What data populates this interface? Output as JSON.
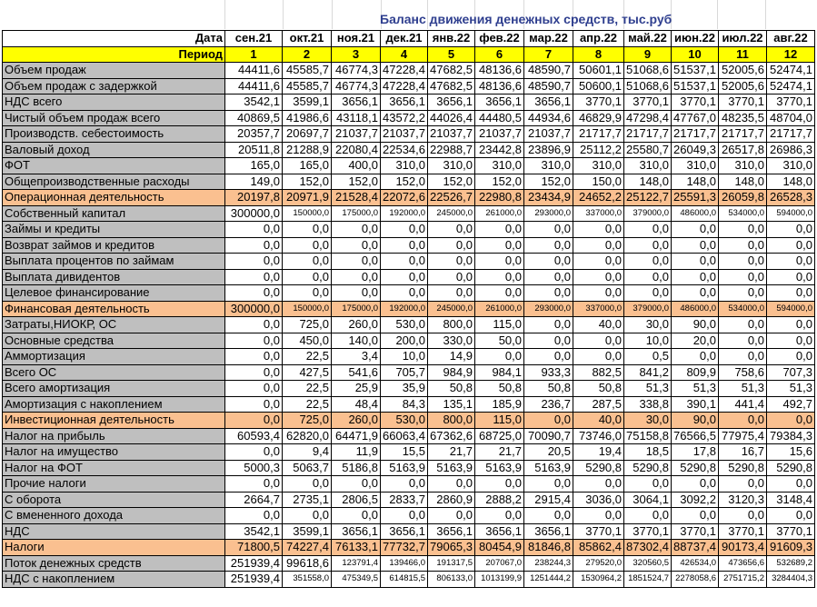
{
  "title": "Баланс движения денежных средств, тыс.руб",
  "header": {
    "label": "Дата",
    "months": [
      "сен.21",
      "окт.21",
      "ноя.21",
      "дек.21",
      "янв.22",
      "фев.22",
      "мар.22",
      "апр.22",
      "май.22",
      "июн.22",
      "июл.22",
      "авг.22"
    ]
  },
  "period": {
    "label": "Период",
    "values": [
      "1",
      "2",
      "3",
      "4",
      "5",
      "6",
      "7",
      "8",
      "9",
      "10",
      "11",
      "12"
    ]
  },
  "rows": [
    {
      "label": "Объем продаж",
      "values": [
        "44411,6",
        "45585,7",
        "46774,3",
        "47228,4",
        "47682,5",
        "48136,6",
        "48590,7",
        "50601,1",
        "51068,6",
        "51537,1",
        "52005,6",
        "52474,1"
      ]
    },
    {
      "label": "Объем продаж с задержкой",
      "values": [
        "44411,6",
        "45585,7",
        "46774,3",
        "47228,4",
        "47682,5",
        "48136,6",
        "48590,7",
        "50600,1",
        "51068,6",
        "51537,1",
        "52005,6",
        "52474,1"
      ]
    },
    {
      "label": "НДС всего",
      "values": [
        "3542,1",
        "3599,1",
        "3656,1",
        "3656,1",
        "3656,1",
        "3656,1",
        "3656,1",
        "3770,1",
        "3770,1",
        "3770,1",
        "3770,1",
        "3770,1"
      ]
    },
    {
      "label": "Чистый объем продаж всего",
      "values": [
        "40869,5",
        "41986,6",
        "43118,1",
        "43572,2",
        "44026,4",
        "44480,5",
        "44934,6",
        "46829,9",
        "47298,4",
        "47767,0",
        "48235,5",
        "48704,0"
      ]
    },
    {
      "label": "Производств. себестоимость",
      "values": [
        "20357,7",
        "20697,7",
        "21037,7",
        "21037,7",
        "21037,7",
        "21037,7",
        "21037,7",
        "21717,7",
        "21717,7",
        "21717,7",
        "21717,7",
        "21717,7"
      ]
    },
    {
      "label": " Валовый доход",
      "values": [
        "20511,8",
        "21288,9",
        "22080,4",
        "22534,6",
        "22988,7",
        "23442,8",
        "23896,9",
        "25112,2",
        "25580,7",
        "26049,3",
        "26517,8",
        "26986,3"
      ]
    },
    {
      "label": "ФОТ",
      "values": [
        "165,0",
        "165,0",
        "400,0",
        "310,0",
        "310,0",
        "310,0",
        "310,0",
        "310,0",
        "310,0",
        "310,0",
        "310,0",
        "310,0"
      ]
    },
    {
      "label": "Общепроизводственные расходы",
      "values": [
        "149,0",
        "152,0",
        "152,0",
        "152,0",
        "152,0",
        "152,0",
        "152,0",
        "150,0",
        "148,0",
        "148,0",
        "148,0",
        "148,0"
      ]
    },
    {
      "label": "Операционная деятельность",
      "highlight": true,
      "values": [
        "20197,8",
        "20971,9",
        "21528,4",
        "22072,6",
        "22526,7",
        "22980,8",
        "23434,9",
        "24652,2",
        "25122,7",
        "25591,3",
        "26059,8",
        "26528,3"
      ]
    },
    {
      "label": "Собственный капитал",
      "small": true,
      "values": [
        "300000,0",
        "150000,0",
        "175000,0",
        "192000,0",
        "245000,0",
        "261000,0",
        "293000,0",
        "337000,0",
        "379000,0",
        "486000,0",
        "534000,0",
        "594000,0"
      ]
    },
    {
      "label": "Займы и кредиты",
      "values": [
        "0,0",
        "0,0",
        "0,0",
        "0,0",
        "0,0",
        "0,0",
        "0,0",
        "0,0",
        "0,0",
        "0,0",
        "0,0",
        "0,0"
      ]
    },
    {
      "label": "Возврат займов и кредитов",
      "values": [
        "0,0",
        "0,0",
        "0,0",
        "0,0",
        "0,0",
        "0,0",
        "0,0",
        "0,0",
        "0,0",
        "0,0",
        "0,0",
        "0,0"
      ]
    },
    {
      "label": "Выплата процентов по займам",
      "values": [
        "0,0",
        "0,0",
        "0,0",
        "0,0",
        "0,0",
        "0,0",
        "0,0",
        "0,0",
        "0,0",
        "0,0",
        "0,0",
        "0,0"
      ]
    },
    {
      "label": "Выплата дивидентов",
      "values": [
        "0,0",
        "0,0",
        "0,0",
        "0,0",
        "0,0",
        "0,0",
        "0,0",
        "0,0",
        "0,0",
        "0,0",
        "0,0",
        "0,0"
      ]
    },
    {
      "label": "Целевое финансирование",
      "values": [
        "0,0",
        "0,0",
        "0,0",
        "0,0",
        "0,0",
        "0,0",
        "0,0",
        "0,0",
        "0,0",
        "0,0",
        "0,0",
        "0,0"
      ]
    },
    {
      "label": "Финансовая деятельность",
      "highlight": true,
      "small": true,
      "values": [
        "300000,0",
        "150000,0",
        "175000,0",
        "192000,0",
        "245000,0",
        "261000,0",
        "293000,0",
        "337000,0",
        "379000,0",
        "486000,0",
        "534000,0",
        "594000,0"
      ]
    },
    {
      "label": "Затраты,НИОКР, ОС",
      "values": [
        "0,0",
        "725,0",
        "260,0",
        "530,0",
        "800,0",
        "115,0",
        "0,0",
        "40,0",
        "30,0",
        "90,0",
        "0,0",
        "0,0"
      ]
    },
    {
      "label": "Основные средства",
      "values": [
        "0,0",
        "450,0",
        "140,0",
        "200,0",
        "330,0",
        "50,0",
        "0,0",
        "0,0",
        "10,0",
        "20,0",
        "0,0",
        "0,0"
      ]
    },
    {
      "label": "Аммортизация",
      "values": [
        "0,0",
        "22,5",
        "3,4",
        "10,0",
        "14,9",
        "0,0",
        "0,0",
        "0,0",
        "0,5",
        "0,0",
        "0,0",
        "0,0"
      ]
    },
    {
      "label": "Всего ОС",
      "values": [
        "0,0",
        "427,5",
        "541,6",
        "705,7",
        "984,9",
        "984,1",
        "933,3",
        "882,5",
        "841,2",
        "809,9",
        "758,6",
        "707,3"
      ]
    },
    {
      "label": "Всего амортизация",
      "values": [
        "0,0",
        "22,5",
        "25,9",
        "35,9",
        "50,8",
        "50,8",
        "50,8",
        "50,8",
        "51,3",
        "51,3",
        "51,3",
        "51,3"
      ]
    },
    {
      "label": "Амортизация  с накоплением",
      "values": [
        "0,0",
        "22,5",
        "48,4",
        "84,3",
        "135,1",
        "185,9",
        "236,7",
        "287,5",
        "338,8",
        "390,1",
        "441,4",
        "492,7"
      ]
    },
    {
      "label": "Инвестиционная деятельность",
      "highlight": true,
      "values": [
        "0,0",
        "725,0",
        "260,0",
        "530,0",
        "800,0",
        "115,0",
        "0,0",
        "40,0",
        "30,0",
        "90,0",
        "0,0",
        "0,0"
      ]
    },
    {
      "label": "Налог на прибыль",
      "values": [
        "60593,4",
        "62820,0",
        "64471,9",
        "66063,4",
        "67362,6",
        "68725,0",
        "70090,7",
        "73746,0",
        "75158,8",
        "76566,5",
        "77975,4",
        "79384,3"
      ]
    },
    {
      "label": "Налог на имущество",
      "values": [
        "0,0",
        "9,4",
        "11,9",
        "15,5",
        "21,7",
        "21,7",
        "20,5",
        "19,4",
        "18,5",
        "17,8",
        "16,7",
        "15,6"
      ]
    },
    {
      "label": "Налог на ФОТ",
      "values": [
        "5000,3",
        "5063,7",
        "5186,8",
        "5163,9",
        "5163,9",
        "5163,9",
        "5163,9",
        "5290,8",
        "5290,8",
        "5290,8",
        "5290,8",
        "5290,8"
      ]
    },
    {
      "label": "Прочие налоги",
      "values": [
        "0,0",
        "0,0",
        "0,0",
        "0,0",
        "0,0",
        "0,0",
        "0,0",
        "0,0",
        "0,0",
        "0,0",
        "0,0",
        "0,0"
      ]
    },
    {
      "label": "С оборота",
      "values": [
        "2664,7",
        "2735,1",
        "2806,5",
        "2833,7",
        "2860,9",
        "2888,2",
        "2915,4",
        "3036,0",
        "3064,1",
        "3092,2",
        "3120,3",
        "3148,4"
      ]
    },
    {
      "label": "С вмененного дохода",
      "values": [
        "0,0",
        "0,0",
        "0,0",
        "0,0",
        "0,0",
        "0,0",
        "0,0",
        "0,0",
        "0,0",
        "0,0",
        "0,0",
        "0,0"
      ]
    },
    {
      "label": "НДС",
      "values": [
        "3542,1",
        "3599,1",
        "3656,1",
        "3656,1",
        "3656,1",
        "3656,1",
        "3656,1",
        "3770,1",
        "3770,1",
        "3770,1",
        "3770,1",
        "3770,1"
      ]
    },
    {
      "label": "Налоги",
      "highlight": true,
      "values": [
        "71800,5",
        "74227,4",
        "76133,1",
        "77732,7",
        "79065,3",
        "80454,9",
        "81846,8",
        "85862,4",
        "87302,4",
        "88737,4",
        "90173,4",
        "91609,3"
      ]
    },
    {
      "label": "Поток денежных средств",
      "values": [
        "251939,4",
        "99618,6",
        "123791,4",
        "139466,0",
        "191317,5",
        "207067,0",
        "238244,3",
        "279520,0",
        "320560,5",
        "426534,0",
        "473656,6",
        "532689,2"
      ],
      "smallCols": [
        2,
        3,
        4,
        5,
        6,
        7,
        8,
        9,
        10,
        11
      ]
    },
    {
      "label": "НДС с накоплением",
      "values": [
        "251939,4",
        "351558,0",
        "475349,5",
        "614815,5",
        "806133,0",
        "1013199,9",
        "1251444,2",
        "1530964,2",
        "1851524,7",
        "2278058,6",
        "2751715,2",
        "3284404,3"
      ],
      "smallCols": [
        1,
        2,
        3,
        4,
        5,
        6,
        7,
        8,
        9,
        10,
        11
      ]
    }
  ]
}
